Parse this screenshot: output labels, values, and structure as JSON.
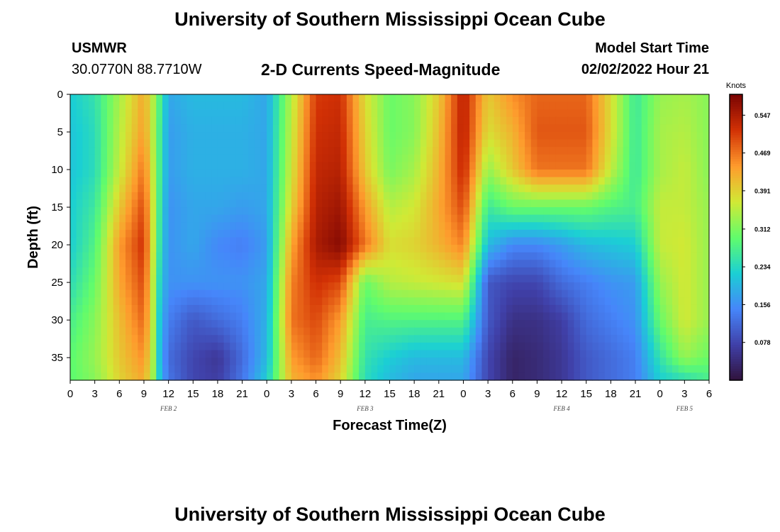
{
  "page": {
    "title": "University of Southern Mississippi Ocean Cube",
    "station": "USMWR",
    "coords": "30.0770N  88.7710W",
    "subtitle": "2-D Currents Speed-Magnitude",
    "model_label": "Model Start Time",
    "model_time": "02/02/2022 Hour 21",
    "footer_title": "University of Southern Mississippi Ocean Cube"
  },
  "chart_data": {
    "type": "heatmap",
    "title": "2-D Currents Speed-Magnitude",
    "xlabel": "Forecast Time(Z)",
    "ylabel": "Depth (ft)",
    "x_range_hours_from_feb2_00z": [
      0,
      78
    ],
    "ylim": [
      0,
      38
    ],
    "y_ticks": [
      0,
      5,
      10,
      15,
      20,
      25,
      30,
      35
    ],
    "x_tick_labels": [
      "0",
      "3",
      "6",
      "9",
      "12",
      "15",
      "18",
      "21",
      "0",
      "3",
      "6",
      "9",
      "12",
      "15",
      "18",
      "21",
      "0",
      "3",
      "6",
      "9",
      "12",
      "15",
      "18",
      "21",
      "0",
      "3",
      "6"
    ],
    "date_labels": [
      {
        "label": "FEB 2",
        "hour": 12
      },
      {
        "label": "FEB 3",
        "hour": 36
      },
      {
        "label": "FEB 4",
        "hour": 60
      },
      {
        "label": "FEB 5",
        "hour": 75
      }
    ],
    "colorbar": {
      "units": "Knots",
      "min": 0.0,
      "max": 0.59,
      "tick_values": [
        0.078,
        0.156,
        0.234,
        0.312,
        0.391,
        0.469,
        0.547
      ],
      "tick_labels": [
        "0.078",
        "0.156",
        "0.234",
        "0.312",
        "0.391",
        "0.469",
        "0.547"
      ],
      "palette": [
        "#30123b",
        "#4040a8",
        "#4686fa",
        "#1bcfd4",
        "#61fc6c",
        "#d1e935",
        "#fe9b2d",
        "#d23105",
        "#7a0403"
      ]
    },
    "speed_field_knots": {
      "depths_ft": [
        0,
        5,
        10,
        15,
        20,
        25,
        30,
        35,
        38
      ],
      "hours": [
        0,
        3,
        6,
        9,
        10,
        11,
        12,
        15,
        18,
        21,
        24,
        27,
        30,
        33,
        36,
        39,
        42,
        45,
        48,
        51,
        54,
        57,
        60,
        63,
        66,
        69,
        72,
        75,
        78
      ],
      "values": [
        [
          0.22,
          0.25,
          0.34,
          0.43,
          0.36,
          0.27,
          0.18,
          0.2,
          0.2,
          0.2,
          0.18,
          0.35,
          0.51,
          0.52,
          0.38,
          0.3,
          0.32,
          0.4,
          0.54,
          0.4,
          0.45,
          0.48,
          0.48,
          0.48,
          0.38,
          0.26,
          0.33,
          0.34,
          0.32
        ],
        [
          0.21,
          0.24,
          0.35,
          0.44,
          0.36,
          0.26,
          0.17,
          0.19,
          0.19,
          0.19,
          0.18,
          0.36,
          0.52,
          0.53,
          0.39,
          0.3,
          0.32,
          0.41,
          0.54,
          0.38,
          0.42,
          0.49,
          0.49,
          0.49,
          0.38,
          0.26,
          0.34,
          0.35,
          0.32
        ],
        [
          0.21,
          0.24,
          0.36,
          0.47,
          0.37,
          0.26,
          0.17,
          0.19,
          0.19,
          0.19,
          0.18,
          0.37,
          0.53,
          0.54,
          0.4,
          0.31,
          0.34,
          0.42,
          0.53,
          0.33,
          0.4,
          0.47,
          0.47,
          0.47,
          0.36,
          0.26,
          0.34,
          0.36,
          0.32
        ],
        [
          0.22,
          0.26,
          0.4,
          0.5,
          0.38,
          0.25,
          0.16,
          0.18,
          0.18,
          0.17,
          0.18,
          0.39,
          0.54,
          0.56,
          0.44,
          0.35,
          0.37,
          0.43,
          0.5,
          0.26,
          0.3,
          0.3,
          0.3,
          0.3,
          0.28,
          0.27,
          0.36,
          0.36,
          0.33
        ],
        [
          0.22,
          0.28,
          0.44,
          0.52,
          0.38,
          0.24,
          0.16,
          0.18,
          0.15,
          0.14,
          0.17,
          0.43,
          0.55,
          0.58,
          0.47,
          0.38,
          0.39,
          0.42,
          0.46,
          0.2,
          0.15,
          0.15,
          0.17,
          0.2,
          0.21,
          0.22,
          0.36,
          0.37,
          0.33
        ],
        [
          0.24,
          0.3,
          0.43,
          0.5,
          0.37,
          0.22,
          0.16,
          0.16,
          0.16,
          0.16,
          0.18,
          0.46,
          0.52,
          0.5,
          0.3,
          0.35,
          0.36,
          0.37,
          0.38,
          0.1,
          0.08,
          0.08,
          0.12,
          0.14,
          0.16,
          0.17,
          0.33,
          0.37,
          0.33
        ],
        [
          0.27,
          0.32,
          0.41,
          0.48,
          0.37,
          0.2,
          0.14,
          0.1,
          0.12,
          0.14,
          0.19,
          0.47,
          0.5,
          0.44,
          0.27,
          0.28,
          0.28,
          0.28,
          0.28,
          0.1,
          0.05,
          0.05,
          0.07,
          0.12,
          0.14,
          0.16,
          0.3,
          0.37,
          0.33
        ],
        [
          0.29,
          0.33,
          0.4,
          0.45,
          0.36,
          0.19,
          0.12,
          0.08,
          0.06,
          0.12,
          0.2,
          0.44,
          0.48,
          0.41,
          0.25,
          0.22,
          0.2,
          0.2,
          0.2,
          0.08,
          0.03,
          0.04,
          0.06,
          0.1,
          0.12,
          0.14,
          0.25,
          0.33,
          0.3
        ],
        [
          0.29,
          0.32,
          0.39,
          0.43,
          0.35,
          0.2,
          0.13,
          0.08,
          0.07,
          0.13,
          0.22,
          0.42,
          0.45,
          0.39,
          0.24,
          0.2,
          0.18,
          0.18,
          0.18,
          0.08,
          0.03,
          0.04,
          0.06,
          0.1,
          0.12,
          0.14,
          0.22,
          0.24,
          0.27
        ]
      ]
    }
  }
}
